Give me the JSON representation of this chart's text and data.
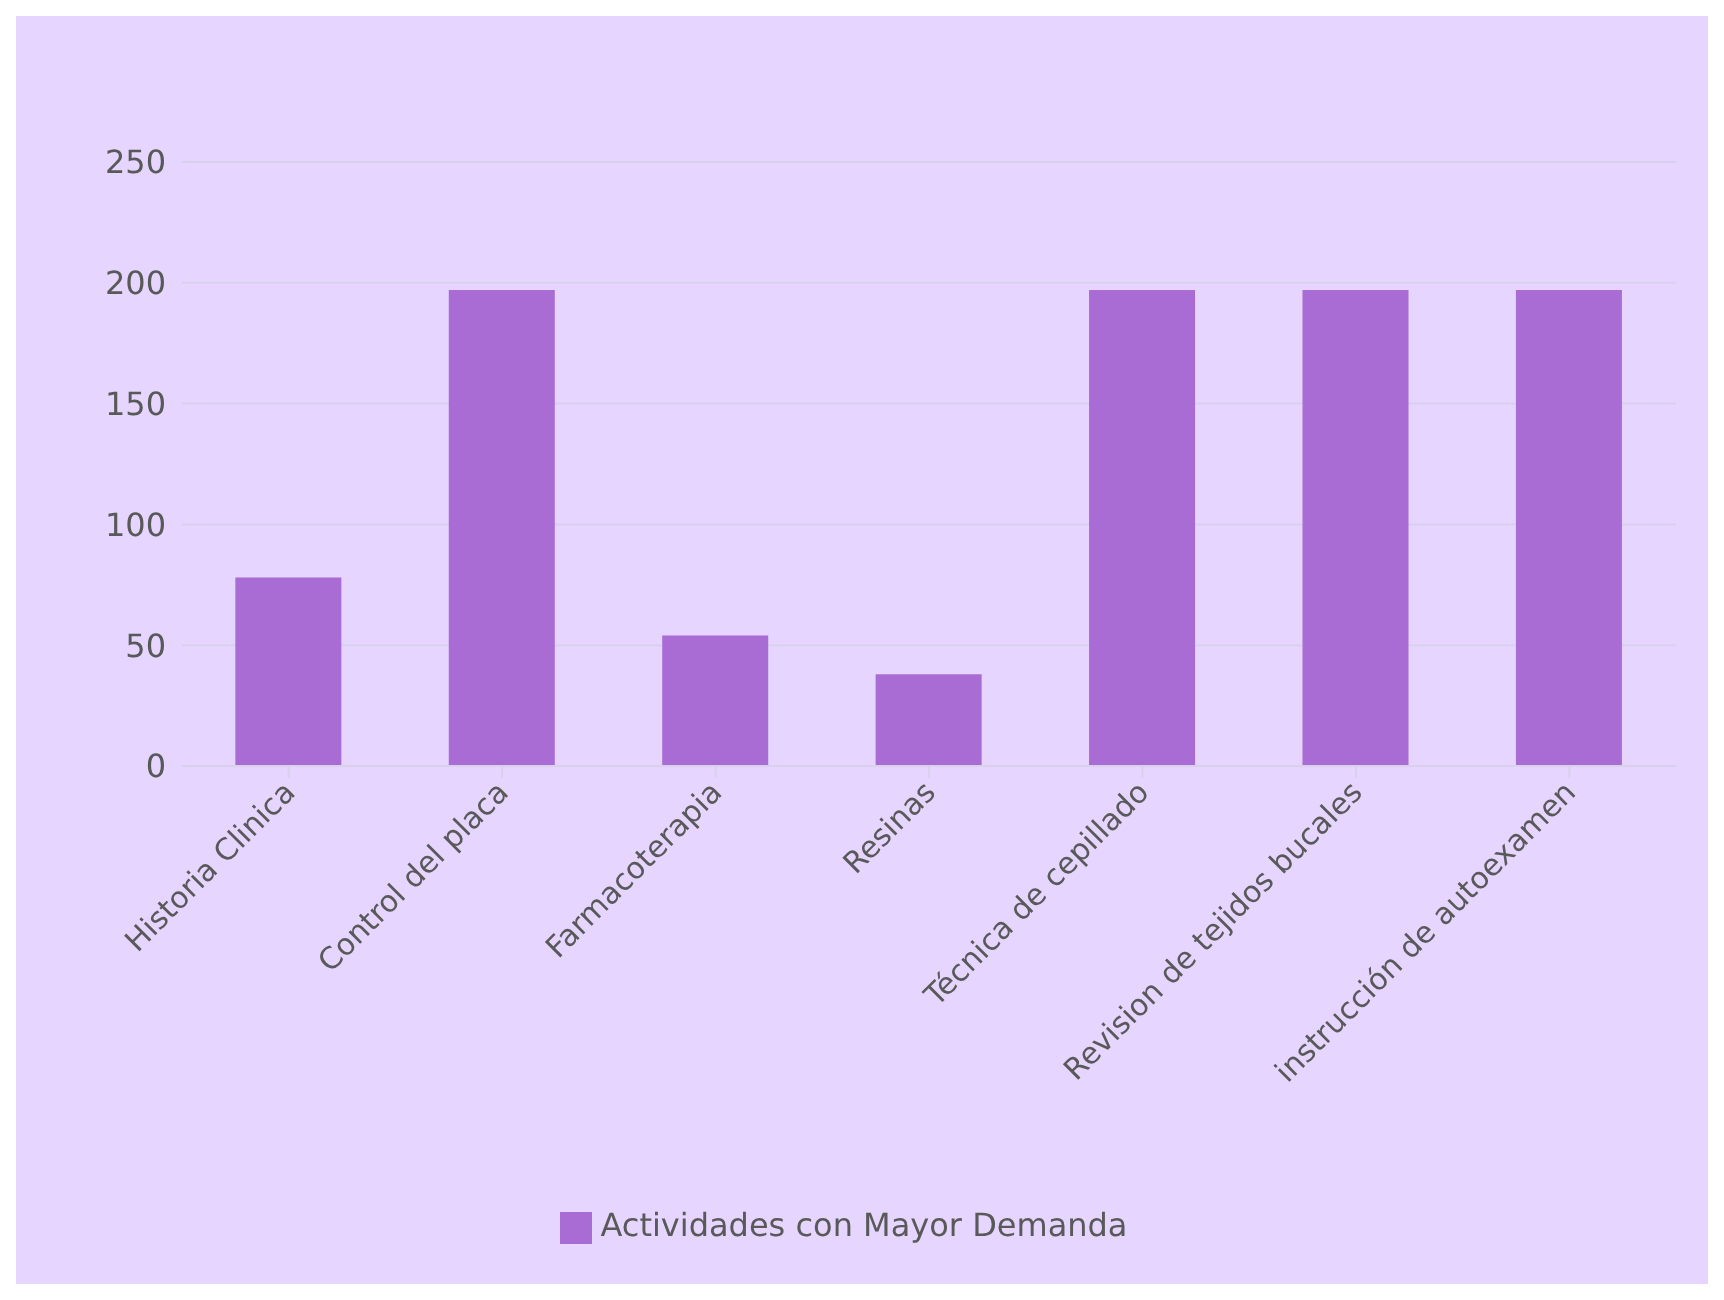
{
  "chart_data": {
    "type": "bar",
    "categories": [
      "Historia Clinica",
      "Control del placa",
      "Farmacoterapia",
      "Resinas",
      "Técnica de cepillado",
      "Revision de tejidos bucales",
      "instrucción de autoexamen"
    ],
    "series": [
      {
        "name": "Actividades con Mayor Demanda",
        "color": "#a96bd4",
        "values": [
          78,
          197,
          54,
          38,
          197,
          197,
          197
        ]
      }
    ],
    "ylim": [
      0,
      250
    ],
    "yticks": [
      0,
      50,
      100,
      150,
      200,
      250
    ],
    "grid": "y",
    "legend": "bottom"
  }
}
